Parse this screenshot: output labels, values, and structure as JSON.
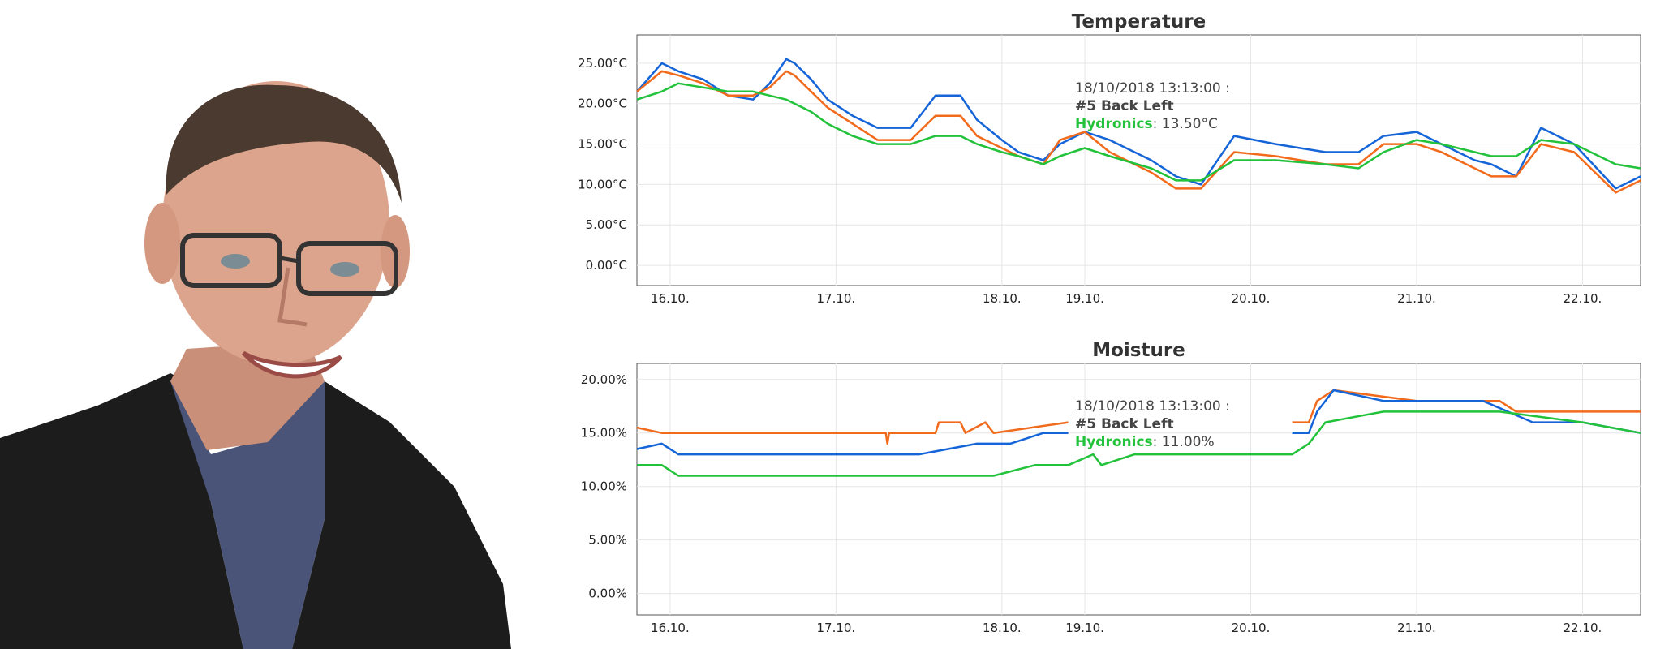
{
  "colors": {
    "blue": "#1565d8",
    "orange": "#f26a1b",
    "green": "#22c23a",
    "grid": "#e6e6e6",
    "axis": "#555555"
  },
  "photo": {
    "subject": "portrait-photo",
    "background": "#ffffff",
    "jacket": "#1c1c1c",
    "shirt": "#4a5478",
    "skin": "#dca48c",
    "hair": "#4a3a30"
  },
  "chart_data": [
    {
      "type": "line",
      "title": "Temperature",
      "x_tick_labels": [
        "16.10.",
        "17.10.",
        "18.10.",
        "19.10.",
        "20.10.",
        "21.10.",
        "22.10."
      ],
      "x_tick_days": [
        16,
        17,
        18,
        18.5,
        19.5,
        20.5,
        21.5
      ],
      "xlim": [
        15.8,
        21.85
      ],
      "y_tick_labels": [
        "0.00°C",
        "5.00°C",
        "10.00°C",
        "15.00°C",
        "20.00°C",
        "25.00°C"
      ],
      "y_tick_values": [
        0,
        5,
        10,
        15,
        20,
        25
      ],
      "ylim": [
        -2.5,
        28.5
      ],
      "grid": true,
      "tooltip": {
        "time": "18/10/2018 13:13:00 :",
        "name_line1": "#5 Back Left",
        "name_line2": "Hydronics",
        "value": ": 13.50°C"
      },
      "series": [
        {
          "color_key": "blue",
          "x": [
            15.8,
            15.95,
            16.05,
            16.2,
            16.35,
            16.5,
            16.6,
            16.7,
            16.75,
            16.85,
            16.95,
            17.1,
            17.25,
            17.45,
            17.6,
            17.75,
            17.85,
            18.0,
            18.1,
            18.25,
            18.35,
            18.5,
            18.65,
            18.9,
            19.05,
            19.2,
            19.4,
            19.65,
            19.95,
            20.15,
            20.3,
            20.5,
            20.65,
            20.85,
            20.95,
            21.1,
            21.25,
            21.45,
            21.7,
            21.85
          ],
          "y": [
            21.5,
            25,
            24,
            23,
            21,
            20.5,
            22.5,
            25.5,
            25,
            23,
            20.5,
            18.5,
            17,
            17,
            21,
            21,
            18,
            15.5,
            14,
            13,
            15,
            16.5,
            15.5,
            13,
            11,
            10,
            16,
            15,
            14,
            14,
            16,
            16.5,
            15,
            13,
            12.5,
            11,
            17,
            15,
            9.5,
            11
          ]
        },
        {
          "color_key": "orange",
          "x": [
            15.8,
            15.95,
            16.05,
            16.2,
            16.35,
            16.5,
            16.6,
            16.7,
            16.75,
            16.85,
            16.95,
            17.1,
            17.25,
            17.45,
            17.6,
            17.75,
            17.85,
            18.0,
            18.1,
            18.25,
            18.35,
            18.5,
            18.65,
            18.9,
            19.05,
            19.2,
            19.4,
            19.65,
            19.95,
            20.15,
            20.3,
            20.5,
            20.65,
            20.85,
            20.95,
            21.1,
            21.25,
            21.45,
            21.7,
            21.85
          ],
          "y": [
            21.5,
            24,
            23.5,
            22.5,
            21,
            21,
            22,
            24,
            23.5,
            21.5,
            19.5,
            17.5,
            15.5,
            15.5,
            18.5,
            18.5,
            16,
            14.5,
            13.5,
            12.5,
            15.5,
            16.5,
            14,
            11.5,
            9.5,
            9.5,
            14,
            13.5,
            12.5,
            12.5,
            15,
            15,
            14,
            12,
            11,
            11,
            15,
            14,
            9,
            10.5
          ]
        },
        {
          "color_key": "green",
          "x": [
            15.8,
            15.95,
            16.05,
            16.2,
            16.35,
            16.5,
            16.6,
            16.7,
            16.75,
            16.85,
            16.95,
            17.1,
            17.25,
            17.45,
            17.6,
            17.75,
            17.85,
            18.0,
            18.1,
            18.25,
            18.35,
            18.5,
            18.65,
            18.9,
            19.05,
            19.2,
            19.4,
            19.65,
            19.95,
            20.15,
            20.3,
            20.5,
            20.65,
            20.85,
            20.95,
            21.1,
            21.25,
            21.45,
            21.7,
            21.85
          ],
          "y": [
            20.5,
            21.5,
            22.5,
            22,
            21.5,
            21.5,
            21,
            20.5,
            20,
            19,
            17.5,
            16,
            15,
            15,
            16,
            16,
            15,
            14,
            13.5,
            12.5,
            13.5,
            14.5,
            13.5,
            12,
            10.5,
            10.5,
            13,
            13,
            12.5,
            12,
            14,
            15.5,
            15,
            14,
            13.5,
            13.5,
            15.5,
            15,
            12.5,
            12
          ]
        }
      ]
    },
    {
      "type": "line",
      "title": "Moisture",
      "x_tick_labels": [
        "16.10.",
        "17.10.",
        "18.10.",
        "19.10.",
        "20.10.",
        "21.10.",
        "22.10."
      ],
      "x_tick_days": [
        16,
        17,
        18,
        18.5,
        19.5,
        20.5,
        21.5
      ],
      "xlim": [
        15.8,
        21.85
      ],
      "y_tick_labels": [
        "0.00%",
        "5.00%",
        "10.00%",
        "15.00%",
        "20.00%"
      ],
      "y_tick_values": [
        0,
        5,
        10,
        15,
        20
      ],
      "ylim": [
        -2,
        21.5
      ],
      "grid": true,
      "tooltip": {
        "time": "18/10/2018 13:13:00 :",
        "name_line1": "#5 Back Left",
        "name_line2": "Hydronics",
        "value": ": 11.00%"
      },
      "series": [
        {
          "color_key": "orange",
          "segments": [
            {
              "x": [
                15.8,
                15.95,
                17.3,
                17.31,
                17.32,
                17.33,
                17.6,
                17.62,
                17.75,
                17.78,
                17.9,
                17.95,
                18.4
              ],
              "y": [
                15.5,
                15,
                15,
                14,
                15,
                15,
                15,
                16,
                16,
                15,
                16,
                15,
                16
              ]
            },
            {
              "x": [
                19.75,
                19.85,
                19.9,
                20.0,
                20.5,
                20.7,
                21.0,
                21.1,
                21.2,
                21.85
              ],
              "y": [
                16,
                16,
                18,
                19,
                18,
                18,
                18,
                17,
                17,
                17
              ]
            }
          ]
        },
        {
          "color_key": "blue",
          "segments": [
            {
              "x": [
                15.8,
                15.95,
                16.05,
                16.1,
                16.5,
                17.0,
                17.5,
                17.85,
                18.05,
                18.25,
                18.4
              ],
              "y": [
                13.5,
                14,
                13,
                13,
                13,
                13,
                13,
                14,
                14,
                15,
                15
              ]
            },
            {
              "x": [
                19.75,
                19.85,
                19.9,
                20.0,
                20.3,
                20.5,
                20.7,
                20.9,
                21.2,
                21.5,
                21.85
              ],
              "y": [
                15,
                15,
                17,
                19,
                18,
                18,
                18,
                18,
                16,
                16,
                15
              ]
            }
          ]
        },
        {
          "color_key": "green",
          "segments": [
            {
              "x": [
                15.8,
                15.95,
                16.05,
                16.2,
                16.5,
                17.0,
                17.5,
                17.75,
                17.95,
                18.2,
                18.4,
                18.55,
                18.6,
                18.8,
                19.0,
                19.5,
                19.75,
                19.85,
                19.95,
                20.3,
                20.6,
                21.0,
                21.5,
                21.85
              ],
              "y": [
                12,
                12,
                11,
                11,
                11,
                11,
                11,
                11,
                11,
                12,
                12,
                13,
                12,
                13,
                13,
                13,
                13,
                14,
                16,
                17,
                17,
                17,
                16,
                15
              ]
            }
          ]
        }
      ]
    }
  ]
}
